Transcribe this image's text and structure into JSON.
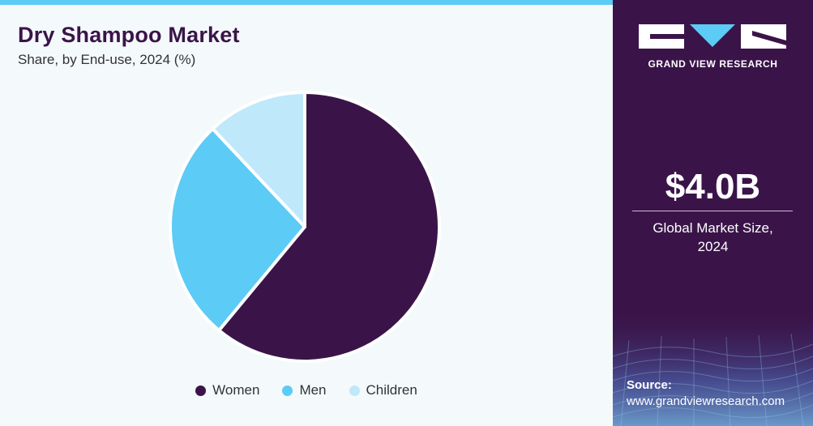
{
  "header": {
    "title": "Dry Shampoo Market",
    "subtitle": "Share, by End-use, 2024 (%)"
  },
  "chart_data": {
    "type": "pie",
    "title": "Dry Shampoo Market",
    "subtitle": "Share, by End-use, 2024 (%)",
    "categories": [
      "Women",
      "Men",
      "Children"
    ],
    "values": [
      61,
      27,
      12
    ],
    "colors": [
      "#3a1449",
      "#5ccbf5",
      "#bfe8fb"
    ],
    "legend_position": "bottom",
    "start": "top",
    "direction": "clockwise"
  },
  "legend": {
    "items": [
      "Women",
      "Men",
      "Children"
    ]
  },
  "sidebar": {
    "brand": "GRAND VIEW RESEARCH",
    "stat_value": "$4.0B",
    "stat_label_line1": "Global Market Size,",
    "stat_label_line2": "2024",
    "source_heading": "Source:",
    "source_url": "www.grandviewresearch.com"
  },
  "colors": {
    "brand_purple": "#3a1449",
    "accent_blue": "#5ccbf5",
    "light_blue": "#bfe8fb",
    "panel_background": "#f4f9fc"
  }
}
